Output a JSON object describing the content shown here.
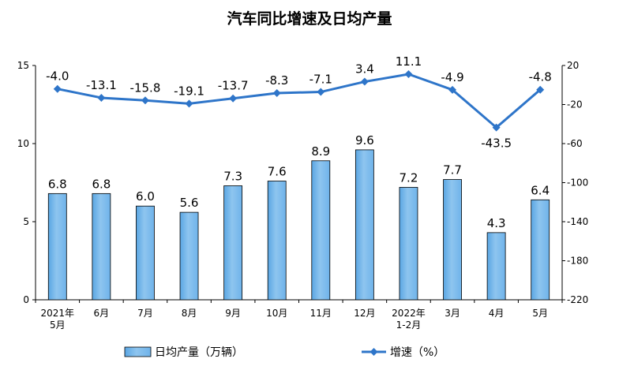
{
  "chart_data": {
    "type": "bar",
    "title": "汽车同比增速及日均产量",
    "categories": [
      [
        "2021年",
        "5月"
      ],
      [
        "6月"
      ],
      [
        "7月"
      ],
      [
        "8月"
      ],
      [
        "9月"
      ],
      [
        "10月"
      ],
      [
        "11月"
      ],
      [
        "12月"
      ],
      [
        "2022年",
        "1-2月"
      ],
      [
        "3月"
      ],
      [
        "4月"
      ],
      [
        "5月"
      ]
    ],
    "series": [
      {
        "name": "日均产量（万辆）",
        "type": "bar",
        "axis": "left",
        "color": "#8ec5ef",
        "values": [
          6.8,
          6.8,
          6.0,
          5.6,
          7.3,
          7.6,
          8.9,
          9.6,
          7.2,
          7.7,
          4.3,
          6.4
        ],
        "labels": [
          "6.8",
          "6.8",
          "6.0",
          "5.6",
          "7.3",
          "7.6",
          "8.9",
          "9.6",
          "7.2",
          "7.7",
          "4.3",
          "6.4"
        ]
      },
      {
        "name": "增速（%）",
        "type": "line",
        "axis": "right",
        "color": "#2e75c9",
        "values": [
          -4.0,
          -13.1,
          -15.8,
          -19.1,
          -13.7,
          -8.3,
          -7.1,
          3.4,
          11.1,
          -4.9,
          -43.5,
          -4.8
        ],
        "labels": [
          "-4.0",
          "-13.1",
          "-15.8",
          "-19.1",
          "-13.7",
          "-8.3",
          "-7.1",
          "3.4",
          "11.1",
          "-4.9",
          "-43.5",
          "-4.8"
        ]
      }
    ],
    "y_left": {
      "min": 0,
      "max": 15,
      "ticks": [
        "0",
        "5",
        "10",
        "15"
      ]
    },
    "y_right": {
      "min": -220,
      "max": 20,
      "ticks": [
        "20",
        "-20",
        "-60",
        "-100",
        "-140",
        "-180",
        "-220"
      ]
    },
    "legend_position": "bottom",
    "grid": false
  }
}
